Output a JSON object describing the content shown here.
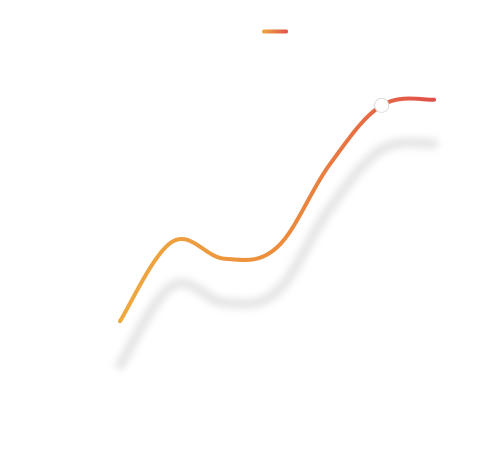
{
  "chart_data": {
    "type": "line",
    "title": "",
    "xlabel": "",
    "ylabel": "",
    "grid": false,
    "legend_placement": "top-center",
    "x": [
      0,
      1,
      2,
      3,
      4,
      5,
      6
    ],
    "xlim": [
      0,
      6
    ],
    "ylim": [
      0,
      100
    ],
    "series": [
      {
        "name": "",
        "values": [
          20,
          48,
          42,
          46,
          75,
          96,
          98
        ],
        "gradient_colors": [
          "#eea93f",
          "#ec8a3c",
          "#e0504a"
        ],
        "highlighted_index": 5
      }
    ],
    "colors": {
      "shadow": "#d9d9d9",
      "marker_fill": "#ffffff",
      "marker_stroke": "#dcdcdc"
    }
  }
}
